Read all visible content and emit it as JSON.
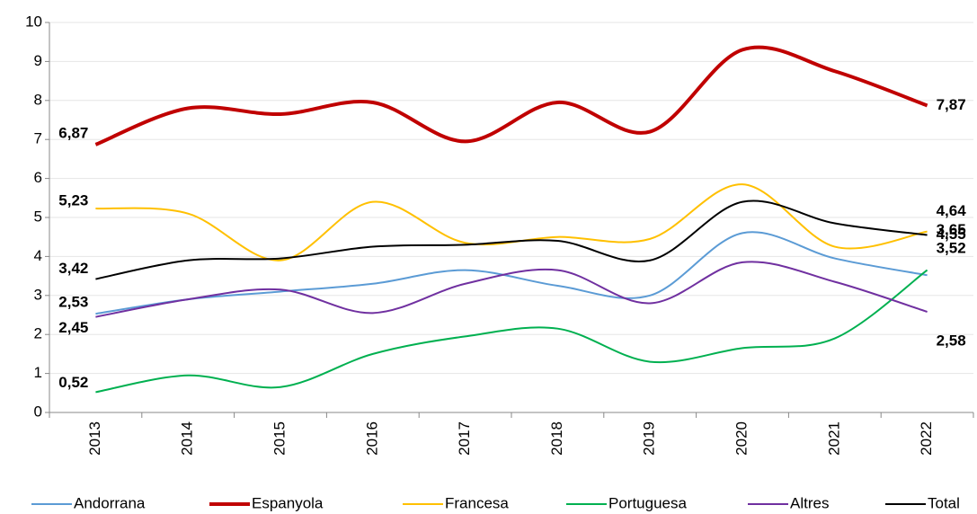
{
  "chart_data": {
    "type": "line",
    "categories": [
      "2013",
      "2014",
      "2015",
      "2016",
      "2017",
      "2018",
      "2019",
      "2020",
      "2021",
      "2022"
    ],
    "ylim": [
      0,
      10
    ],
    "yticks": [
      0,
      1,
      2,
      3,
      4,
      5,
      6,
      7,
      8,
      9,
      10
    ],
    "grid": true,
    "smooth": true,
    "legend": "bottom",
    "series": [
      {
        "name": "Andorrana",
        "color": "#5b9bd5",
        "values": [
          2.53,
          2.9,
          3.1,
          3.3,
          3.65,
          3.25,
          3.0,
          4.6,
          3.95,
          3.52
        ],
        "value_labels": [
          "2,53",
          null,
          null,
          null,
          null,
          null,
          null,
          null,
          null,
          "3,52"
        ]
      },
      {
        "name": "Espanyola",
        "color": "#c00000",
        "values": [
          6.87,
          7.8,
          7.65,
          7.95,
          6.95,
          7.95,
          7.2,
          9.3,
          8.75,
          7.87
        ],
        "value_labels": [
          "6,87",
          null,
          null,
          null,
          null,
          null,
          null,
          null,
          null,
          "7,87"
        ]
      },
      {
        "name": "Francesa",
        "color": "#ffc000",
        "values": [
          5.23,
          5.1,
          3.9,
          5.4,
          4.35,
          4.5,
          4.45,
          5.85,
          4.25,
          4.64
        ],
        "value_labels": [
          "5,23",
          null,
          null,
          null,
          null,
          null,
          null,
          null,
          null,
          "4,64"
        ]
      },
      {
        "name": "Portuguesa",
        "color": "#00b050",
        "values": [
          0.52,
          0.95,
          0.65,
          1.5,
          1.95,
          2.15,
          1.3,
          1.65,
          1.9,
          3.65
        ],
        "value_labels": [
          "0,52",
          null,
          null,
          null,
          null,
          null,
          null,
          null,
          null,
          "3,65"
        ]
      },
      {
        "name": "Altres",
        "color": "#7030a0",
        "values": [
          2.45,
          2.9,
          3.15,
          2.55,
          3.3,
          3.65,
          2.8,
          3.85,
          3.35,
          2.58
        ],
        "value_labels": [
          "2,45",
          null,
          null,
          null,
          null,
          null,
          null,
          null,
          null,
          "2,58"
        ]
      },
      {
        "name": "Total",
        "color": "#000000",
        "values": [
          3.42,
          3.9,
          3.95,
          4.25,
          4.3,
          4.4,
          3.9,
          5.4,
          4.85,
          4.55
        ],
        "value_labels": [
          "3,42",
          null,
          null,
          null,
          null,
          null,
          null,
          null,
          null,
          "4,55"
        ]
      }
    ]
  }
}
